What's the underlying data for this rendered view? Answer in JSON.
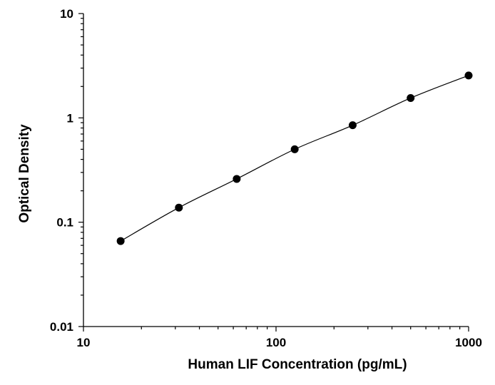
{
  "chart_data": {
    "type": "scatter",
    "title": "",
    "xlabel": "Human LIF Concentration (pg/mL)",
    "ylabel": "Optical Density",
    "xscale": "log",
    "yscale": "log",
    "xlim": [
      10,
      1000
    ],
    "ylim": [
      0.01,
      10
    ],
    "x_ticks": [
      "10",
      "100",
      "1000"
    ],
    "y_ticks": [
      "0.01",
      "0.1",
      "1",
      "10"
    ],
    "grid": false,
    "legend": "none",
    "fit_line": "smooth curve through points",
    "series": [
      {
        "x": [
          15.6,
          31.3,
          62.5,
          125,
          250,
          500,
          1000
        ],
        "y": [
          0.066,
          0.138,
          0.26,
          0.5,
          0.85,
          1.55,
          2.55
        ]
      }
    ]
  }
}
